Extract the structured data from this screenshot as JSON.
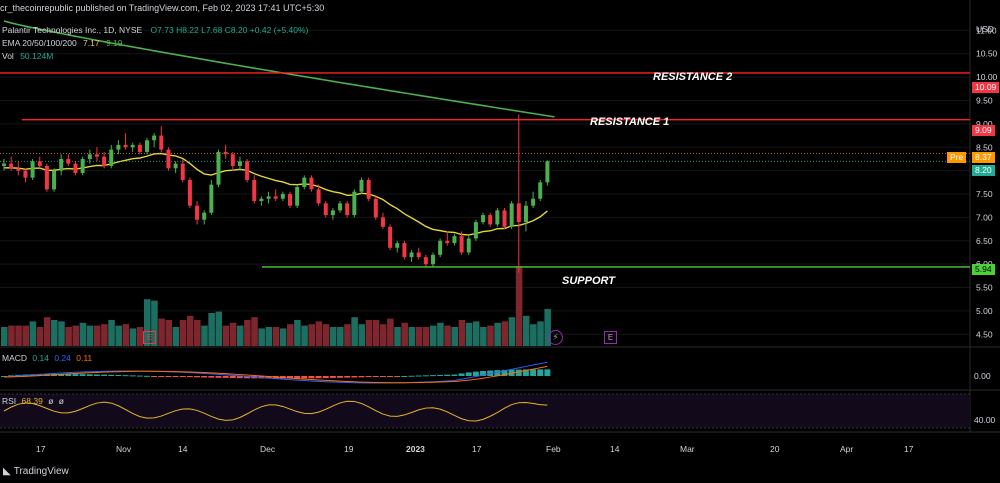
{
  "header": {
    "published": "cr_thecoinrepublic published on TradingView.com, Feb 02, 2023 17:41 UTC+5:30"
  },
  "legend": {
    "symbol": "Palantir Technologies Inc., 1D, NYSE",
    "ohlc": "O7.73  H8.22  L7.68  C8.20  +0.42 (+5.40%)",
    "ema_label": "EMA 20/50/100/200",
    "ema_values": [
      "7.17",
      "9.19"
    ],
    "vol_label": "Vol",
    "vol_value": "50.124M"
  },
  "price_axis": {
    "currency": "USD",
    "ticks": [
      "11.00",
      "10.50",
      "10.00",
      "9.50",
      "9.00",
      "8.50",
      "8.00",
      "7.50",
      "7.00",
      "6.50",
      "6.00",
      "5.50",
      "5.00",
      "4.50"
    ]
  },
  "price_tags": {
    "resistance2": "10.09",
    "resistance1": "9.09",
    "pre_label": "Pre",
    "pre_value": "8.37",
    "last": "8.20",
    "support": "5.94"
  },
  "annotations": {
    "resistance2": "RESISTANCE 2",
    "resistance1": "RESISTANCE 1",
    "support": "SUPPORT"
  },
  "macd": {
    "label": "MACD",
    "v1": "0.14",
    "v2": "0.24",
    "v3": "0.11",
    "axis_tick": "0.00"
  },
  "rsi": {
    "label": "RSI",
    "value": "68.39",
    "extra1": "ø",
    "extra2": "ø",
    "axis_tick": "40.00"
  },
  "time_axis": [
    "17",
    "Nov",
    "14",
    "Dec",
    "19",
    "2023",
    "17",
    "Feb",
    "14",
    "Mar",
    "20",
    "Apr",
    "17"
  ],
  "event_badges": [
    "E",
    "E"
  ],
  "footer": {
    "brand": "TradingView"
  },
  "colors": {
    "up": "#22ab94",
    "upBright": "#4caf50",
    "down": "#f23645",
    "ema50": "#e6d53a",
    "ema200": "#4caf50",
    "resistance": "#ff2020",
    "support": "#4cd137",
    "macd": "#2962ff",
    "signal": "#ff6d00",
    "rsi": "#e6b52a"
  },
  "chart_data": {
    "type": "candlestick",
    "ohlc_approx": [
      [
        8.1,
        8.25,
        8.0,
        8.15
      ],
      [
        8.15,
        8.3,
        8.0,
        8.05
      ],
      [
        8.05,
        8.2,
        7.9,
        8.0
      ],
      [
        8.0,
        8.05,
        7.75,
        7.85
      ],
      [
        7.85,
        8.25,
        7.8,
        8.2
      ],
      [
        8.2,
        8.3,
        8.05,
        8.1
      ],
      [
        8.1,
        8.15,
        7.55,
        7.6
      ],
      [
        7.6,
        8.05,
        7.55,
        8.0
      ],
      [
        8.0,
        8.35,
        7.9,
        8.25
      ],
      [
        8.25,
        8.35,
        8.1,
        8.15
      ],
      [
        8.15,
        8.2,
        7.9,
        7.95
      ],
      [
        7.95,
        8.3,
        7.9,
        8.25
      ],
      [
        8.25,
        8.45,
        8.15,
        8.35
      ],
      [
        8.35,
        8.5,
        8.2,
        8.3
      ],
      [
        8.3,
        8.4,
        8.05,
        8.1
      ],
      [
        8.1,
        8.55,
        8.05,
        8.45
      ],
      [
        8.45,
        8.65,
        8.35,
        8.55
      ],
      [
        8.55,
        8.8,
        8.45,
        8.5
      ],
      [
        8.5,
        8.6,
        8.4,
        8.55
      ],
      [
        8.55,
        8.6,
        8.35,
        8.4
      ],
      [
        8.4,
        8.7,
        8.35,
        8.65
      ],
      [
        8.65,
        8.8,
        8.5,
        8.75
      ],
      [
        8.75,
        8.95,
        8.4,
        8.45
      ],
      [
        8.45,
        8.5,
        8.0,
        8.05
      ],
      [
        8.05,
        8.2,
        7.95,
        8.15
      ],
      [
        8.15,
        8.25,
        7.75,
        7.8
      ],
      [
        7.8,
        7.85,
        7.2,
        7.25
      ],
      [
        7.25,
        7.35,
        6.85,
        6.95
      ],
      [
        6.95,
        7.15,
        6.85,
        7.1
      ],
      [
        7.1,
        7.8,
        7.05,
        7.7
      ],
      [
        7.7,
        8.45,
        7.65,
        8.4
      ],
      [
        8.4,
        8.55,
        8.25,
        8.35
      ],
      [
        8.35,
        8.4,
        8.0,
        8.1
      ],
      [
        8.1,
        8.3,
        8.0,
        8.2
      ],
      [
        8.2,
        8.25,
        7.75,
        7.8
      ],
      [
        7.8,
        7.9,
        7.3,
        7.35
      ],
      [
        7.35,
        7.45,
        7.25,
        7.4
      ],
      [
        7.4,
        7.55,
        7.3,
        7.45
      ],
      [
        7.45,
        7.6,
        7.35,
        7.4
      ],
      [
        7.4,
        7.55,
        7.35,
        7.5
      ],
      [
        7.5,
        7.55,
        7.2,
        7.25
      ],
      [
        7.25,
        7.7,
        7.2,
        7.65
      ],
      [
        7.65,
        7.9,
        7.6,
        7.85
      ],
      [
        7.85,
        7.9,
        7.55,
        7.6
      ],
      [
        7.6,
        7.7,
        7.25,
        7.3
      ],
      [
        7.3,
        7.35,
        7.0,
        7.05
      ],
      [
        7.05,
        7.2,
        6.95,
        7.15
      ],
      [
        7.15,
        7.35,
        7.1,
        7.3
      ],
      [
        7.3,
        7.35,
        7.0,
        7.05
      ],
      [
        7.05,
        7.6,
        7.0,
        7.55
      ],
      [
        7.55,
        7.85,
        7.5,
        7.8
      ],
      [
        7.8,
        7.85,
        7.35,
        7.4
      ],
      [
        7.4,
        7.45,
        6.95,
        7.0
      ],
      [
        7.0,
        7.1,
        6.75,
        6.8
      ],
      [
        6.8,
        6.85,
        6.3,
        6.35
      ],
      [
        6.35,
        6.5,
        6.25,
        6.45
      ],
      [
        6.45,
        6.5,
        6.1,
        6.15
      ],
      [
        6.15,
        6.3,
        6.05,
        6.25
      ],
      [
        6.25,
        6.35,
        6.1,
        6.15
      ],
      [
        6.15,
        6.2,
        5.95,
        6.0
      ],
      [
        6.0,
        6.25,
        5.95,
        6.2
      ],
      [
        6.2,
        6.55,
        6.15,
        6.5
      ],
      [
        6.5,
        6.7,
        6.4,
        6.45
      ],
      [
        6.45,
        6.65,
        6.4,
        6.6
      ],
      [
        6.6,
        6.7,
        6.2,
        6.25
      ],
      [
        6.25,
        6.6,
        6.2,
        6.55
      ],
      [
        6.55,
        6.95,
        6.5,
        6.9
      ],
      [
        6.9,
        7.1,
        6.85,
        7.05
      ],
      [
        7.05,
        7.1,
        6.8,
        6.85
      ],
      [
        6.85,
        7.2,
        6.8,
        7.15
      ],
      [
        7.15,
        7.2,
        6.75,
        6.8
      ],
      [
        6.8,
        7.35,
        6.75,
        7.3
      ],
      [
        7.3,
        9.2,
        5.82,
        6.9
      ],
      [
        6.9,
        7.35,
        6.7,
        7.25
      ],
      [
        7.25,
        7.55,
        7.2,
        7.4
      ],
      [
        7.4,
        7.8,
        7.35,
        7.75
      ],
      [
        7.75,
        8.22,
        7.68,
        8.2
      ]
    ],
    "ema_values_shown": [
      7.17,
      9.19
    ],
    "horizontal_levels": [
      {
        "label": "RESISTANCE 2",
        "value": 10.09
      },
      {
        "label": "RESISTANCE 1",
        "value": 9.09
      },
      {
        "label": "SUPPORT",
        "value": 5.94
      }
    ],
    "y_range": [
      4.25,
      11.35
    ]
  }
}
